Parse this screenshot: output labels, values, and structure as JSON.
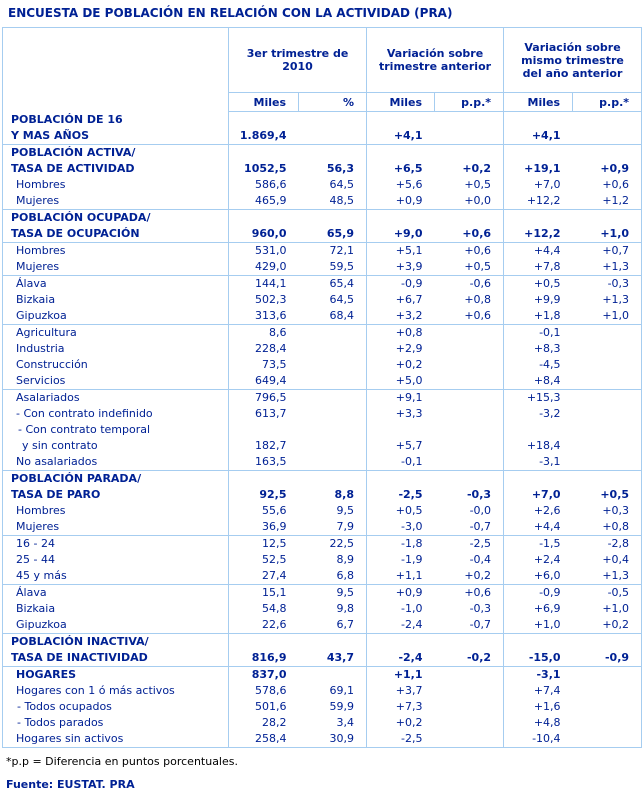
{
  "title": "ENCUESTA DE POBLACIÓN EN RELACIÓN CON LA ACTIVIDAD (PRA)",
  "colors": {
    "text_navy": "#002194",
    "border_blue": "#a6cdf0",
    "footnote_black": "#000000"
  },
  "header": {
    "groups": [
      {
        "label": "3er trimestre de 2010"
      },
      {
        "label": "Variación sobre trimestre anterior"
      },
      {
        "label": "Variación sobre mismo trimestre del año anterior"
      }
    ],
    "subheaders": [
      "Miles",
      "%",
      "Miles",
      "p.p.*",
      "Miles",
      "p.p.*"
    ]
  },
  "rows": [
    {
      "label": [
        "POBLACIÓN DE 16",
        "Y MAS AÑOS"
      ],
      "style": "section",
      "top": false,
      "cells": [
        "1.869,4",
        "",
        "+4,1",
        "",
        "+4,1",
        ""
      ]
    },
    {
      "label": [
        "POBLACIÓN ACTIVA/",
        "TASA DE ACTIVIDAD"
      ],
      "style": "section",
      "top": true,
      "cells": [
        "1052,5",
        "56,3",
        "+6,5",
        "+0,2",
        "+19,1",
        "+0,9"
      ]
    },
    {
      "label": [
        "Hombres"
      ],
      "style": "sub",
      "top": false,
      "cells": [
        "586,6",
        "64,5",
        "+5,6",
        "+0,5",
        "+7,0",
        "+0,6"
      ]
    },
    {
      "label": [
        "Mujeres"
      ],
      "style": "sub",
      "top": false,
      "cells": [
        "465,9",
        "48,5",
        "+0,9",
        "+0,0",
        "+12,2",
        "+1,2"
      ]
    },
    {
      "label": [
        "POBLACIÓN OCUPADA/",
        "TASA DE OCUPACIÓN"
      ],
      "style": "section",
      "top": true,
      "cells": [
        "960,0",
        "65,9",
        "+9,0",
        "+0,6",
        "+12,2",
        "+1,0"
      ]
    },
    {
      "label": [
        "Hombres"
      ],
      "style": "sub",
      "top": true,
      "cells": [
        "531,0",
        "72,1",
        "+5,1",
        "+0,6",
        "+4,4",
        "+0,7"
      ]
    },
    {
      "label": [
        "Mujeres"
      ],
      "style": "sub",
      "top": false,
      "cells": [
        "429,0",
        "59,5",
        "+3,9",
        "+0,5",
        "+7,8",
        "+1,3"
      ]
    },
    {
      "label": [
        "Álava"
      ],
      "style": "sub",
      "top": true,
      "cells": [
        "144,1",
        "65,4",
        "-0,9",
        "-0,6",
        "+0,5",
        "-0,3"
      ]
    },
    {
      "label": [
        "Bizkaia"
      ],
      "style": "sub",
      "top": false,
      "cells": [
        "502,3",
        "64,5",
        "+6,7",
        "+0,8",
        "+9,9",
        "+1,3"
      ]
    },
    {
      "label": [
        "Gipuzkoa"
      ],
      "style": "sub",
      "top": false,
      "cells": [
        "313,6",
        "68,4",
        "+3,2",
        "+0,6",
        "+1,8",
        "+1,0"
      ]
    },
    {
      "label": [
        "Agricultura"
      ],
      "style": "sub",
      "top": true,
      "cells": [
        "8,6",
        "",
        "+0,8",
        "",
        "-0,1",
        ""
      ]
    },
    {
      "label": [
        "Industria"
      ],
      "style": "sub",
      "top": false,
      "cells": [
        "228,4",
        "",
        "+2,9",
        "",
        "+8,3",
        ""
      ]
    },
    {
      "label": [
        "Construcción"
      ],
      "style": "sub",
      "top": false,
      "cells": [
        "73,5",
        "",
        "+0,2",
        "",
        "-4,5",
        ""
      ]
    },
    {
      "label": [
        "Servicios"
      ],
      "style": "sub",
      "top": false,
      "cells": [
        "649,4",
        "",
        "+5,0",
        "",
        "+8,4",
        ""
      ]
    },
    {
      "label": [
        "Asalariados"
      ],
      "style": "sub",
      "top": true,
      "cells": [
        "796,5",
        "",
        "+9,1",
        "",
        "+15,3",
        ""
      ]
    },
    {
      "label": [
        "- Con contrato indefinido"
      ],
      "style": "sub",
      "top": false,
      "cells": [
        "613,7",
        "",
        "+3,3",
        "",
        "-3,2",
        ""
      ]
    },
    {
      "label": [
        "- Con contrato temporal",
        "y sin contrato"
      ],
      "style": "sub2",
      "top": false,
      "cells": [
        "182,7",
        "",
        "+5,7",
        "",
        "+18,4",
        ""
      ]
    },
    {
      "label": [
        "No asalariados"
      ],
      "style": "sub",
      "top": false,
      "cells": [
        "163,5",
        "",
        "-0,1",
        "",
        "-3,1",
        ""
      ]
    },
    {
      "label": [
        "POBLACIÓN PARADA/",
        "TASA DE PARO"
      ],
      "style": "section",
      "top": true,
      "cells": [
        "92,5",
        "8,8",
        "-2,5",
        "-0,3",
        "+7,0",
        "+0,5"
      ]
    },
    {
      "label": [
        "Hombres"
      ],
      "style": "sub",
      "top": false,
      "cells": [
        "55,6",
        "9,5",
        "+0,5",
        "-0,0",
        "+2,6",
        "+0,3"
      ]
    },
    {
      "label": [
        "Mujeres"
      ],
      "style": "sub",
      "top": false,
      "cells": [
        "36,9",
        "7,9",
        "-3,0",
        "-0,7",
        "+4,4",
        "+0,8"
      ]
    },
    {
      "label": [
        "16 - 24"
      ],
      "style": "sub",
      "top": true,
      "cells": [
        "12,5",
        "22,5",
        "-1,8",
        "-2,5",
        "-1,5",
        "-2,8"
      ]
    },
    {
      "label": [
        "25 - 44"
      ],
      "style": "sub",
      "top": false,
      "cells": [
        "52,5",
        "8,9",
        "-1,9",
        "-0,4",
        "+2,4",
        "+0,4"
      ]
    },
    {
      "label": [
        "45  y más"
      ],
      "style": "sub",
      "top": false,
      "cells": [
        "27,4",
        "6,8",
        "+1,1",
        "+0,2",
        "+6,0",
        "+1,3"
      ]
    },
    {
      "label": [
        "Álava"
      ],
      "style": "sub",
      "top": true,
      "cells": [
        "15,1",
        "9,5",
        "+0,9",
        "+0,6",
        "-0,9",
        "-0,5"
      ]
    },
    {
      "label": [
        "Bizkaia"
      ],
      "style": "sub",
      "top": false,
      "cells": [
        "54,8",
        "9,8",
        "-1,0",
        "-0,3",
        "+6,9",
        "+1,0"
      ]
    },
    {
      "label": [
        "Gipuzkoa"
      ],
      "style": "sub",
      "top": false,
      "cells": [
        "22,6",
        "6,7",
        "-2,4",
        "-0,7",
        "+1,0",
        "+0,2"
      ]
    },
    {
      "label": [
        "POBLACIÓN INACTIVA/",
        "TASA DE INACTIVIDAD"
      ],
      "style": "section",
      "top": true,
      "cells": [
        "816,9",
        "43,7",
        "-2,4",
        "-0,2",
        "-15,0",
        "-0,9"
      ]
    },
    {
      "label": [
        "HOGARES"
      ],
      "style": "hog",
      "top": true,
      "cells": [
        "837,0",
        "",
        "+1,1",
        "",
        "-3,1",
        ""
      ]
    },
    {
      "label": [
        "Hogares con 1 ó más activos"
      ],
      "style": "sub",
      "top": false,
      "cells": [
        "578,6",
        "69,1",
        "+3,7",
        "",
        "+7,4",
        ""
      ]
    },
    {
      "label": [
        "- Todos ocupados"
      ],
      "style": "subdash",
      "top": false,
      "cells": [
        "501,6",
        "59,9",
        "+7,3",
        "",
        "+1,6",
        ""
      ]
    },
    {
      "label": [
        "- Todos parados"
      ],
      "style": "subdash",
      "top": false,
      "cells": [
        "28,2",
        "3,4",
        "+0,2",
        "",
        "+4,8",
        ""
      ]
    },
    {
      "label": [
        "Hogares sin activos"
      ],
      "style": "sub",
      "top": false,
      "cells": [
        "258,4",
        "30,9",
        "-2,5",
        "",
        "-10,4",
        ""
      ]
    }
  ],
  "footnote": "*p.p = Diferencia en puntos porcentuales.",
  "source": "Fuente: EUSTAT. PRA"
}
